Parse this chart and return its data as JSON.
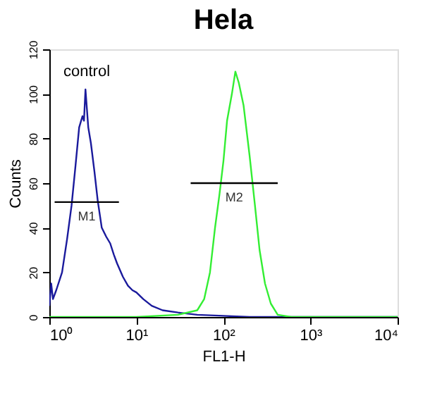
{
  "chart_data": {
    "type": "line",
    "title": "Hela",
    "xlabel": "FL1-H",
    "ylabel": "Counts",
    "log": "x",
    "grid": false,
    "legend": false,
    "xlim": [
      1,
      10000
    ],
    "xticks": [
      {
        "value": 1,
        "label": "10⁰"
      },
      {
        "value": 10,
        "label": "10¹"
      },
      {
        "value": 100,
        "label": "10²"
      },
      {
        "value": 1000,
        "label": "10³"
      },
      {
        "value": 10000,
        "label": "10⁴"
      }
    ],
    "ylim": [
      0,
      120
    ],
    "yticks": [
      0,
      20,
      40,
      60,
      80,
      100,
      120
    ],
    "series": [
      {
        "color": "#1a1a9c",
        "x": [
          1.0,
          1.05,
          1.1,
          1.2,
          1.4,
          1.6,
          1.8,
          2.0,
          2.2,
          2.4,
          2.5,
          2.6,
          2.8,
          3.0,
          3.3,
          3.6,
          4.0,
          4.5,
          5.0,
          5.5,
          6.0,
          7,
          8,
          9,
          10,
          12,
          15,
          20,
          30,
          50,
          100,
          200,
          1000,
          10000
        ],
        "values": [
          5,
          15,
          8,
          12,
          20,
          35,
          50,
          68,
          85,
          90,
          88,
          102,
          85,
          78,
          65,
          52,
          40,
          36,
          33,
          28,
          24,
          18,
          14,
          12,
          11,
          8,
          5,
          3,
          2,
          1,
          0.5,
          0,
          0,
          0
        ]
      },
      {
        "color": "#33ee33",
        "x": [
          1,
          10,
          30,
          50,
          60,
          70,
          80,
          90,
          100,
          110,
          125,
          137,
          150,
          170,
          200,
          230,
          260,
          300,
          350,
          420,
          600,
          10000
        ],
        "values": [
          0,
          0,
          1,
          3,
          8,
          20,
          40,
          55,
          70,
          88,
          100,
          110,
          105,
          95,
          72,
          50,
          30,
          15,
          6,
          1,
          0,
          0
        ]
      },
      {
        "name": "M1",
        "color": "#000000",
        "x": [
          1.15,
          6.3
        ],
        "values": [
          51.5,
          51.5
        ]
      },
      {
        "name": "M2",
        "color": "#000000",
        "x": [
          42,
          420
        ],
        "values": [
          60,
          60
        ]
      }
    ],
    "annotations": [
      "control"
    ]
  }
}
